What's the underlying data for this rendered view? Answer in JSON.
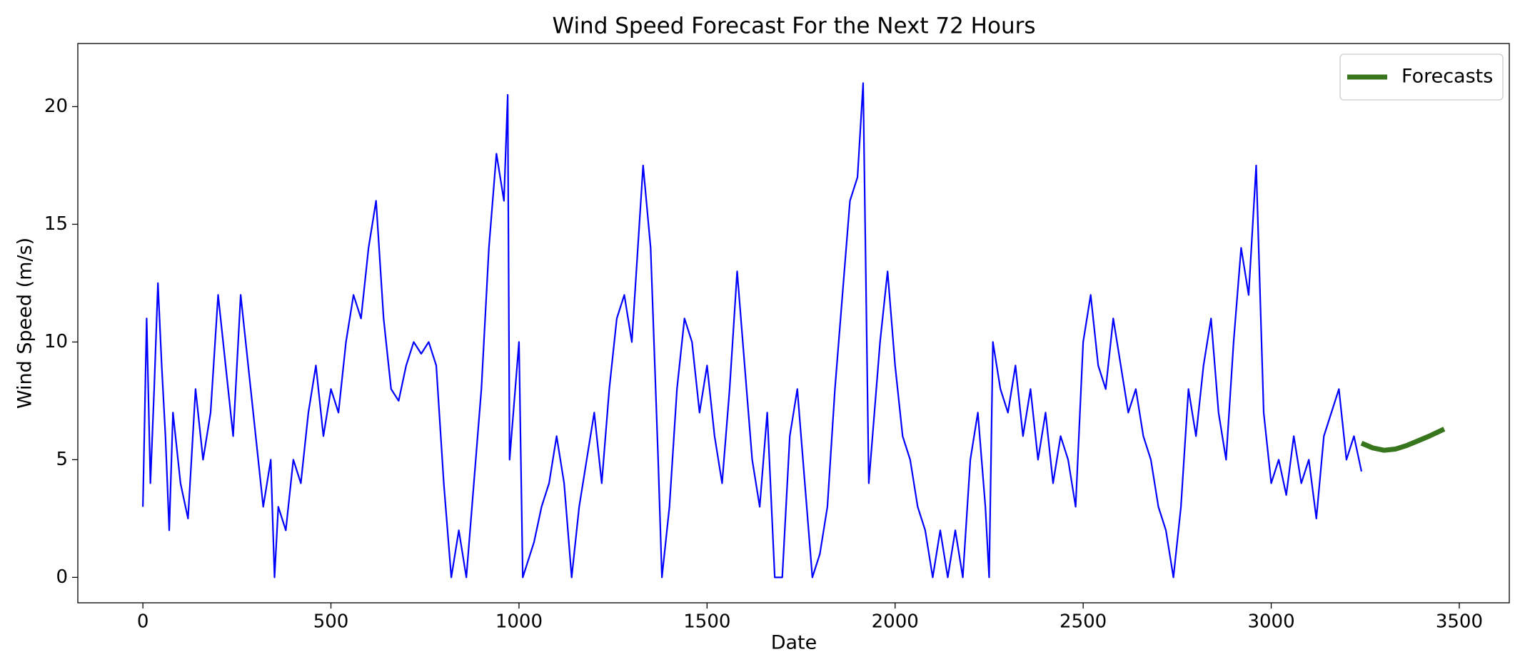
{
  "chart_data": {
    "type": "line",
    "title": "Wind Speed Forecast For the Next 72 Hours",
    "xlabel": "Date",
    "ylabel": "Wind Speed (m/s)",
    "xlim": [
      -173,
      3633
    ],
    "ylim": [
      -1.08,
      22.68
    ],
    "xticks": [
      0,
      500,
      1000,
      1500,
      2000,
      2500,
      3000,
      3500
    ],
    "yticks": [
      0,
      5,
      10,
      15,
      20
    ],
    "grid": false,
    "legend": "upper right",
    "series": [
      {
        "color": "#0000ff",
        "x": [
          0,
          10,
          20,
          30,
          40,
          50,
          60,
          70,
          80,
          100,
          120,
          140,
          160,
          180,
          200,
          220,
          240,
          260,
          280,
          300,
          320,
          340,
          350,
          360,
          380,
          400,
          420,
          440,
          460,
          480,
          500,
          520,
          540,
          560,
          580,
          600,
          620,
          640,
          660,
          680,
          700,
          720,
          740,
          760,
          780,
          800,
          810,
          820,
          840,
          860,
          880,
          900,
          920,
          940,
          960,
          970,
          975,
          990,
          1000,
          1010,
          1040,
          1060,
          1080,
          1100,
          1120,
          1140,
          1160,
          1180,
          1200,
          1220,
          1240,
          1260,
          1280,
          1300,
          1320,
          1330,
          1350,
          1370,
          1380,
          1400,
          1420,
          1440,
          1460,
          1480,
          1500,
          1520,
          1540,
          1560,
          1580,
          1600,
          1620,
          1640,
          1660,
          1680,
          1700,
          1720,
          1740,
          1760,
          1780,
          1800,
          1820,
          1840,
          1860,
          1880,
          1900,
          1915,
          1930,
          1960,
          1980,
          2000,
          2020,
          2040,
          2060,
          2080,
          2100,
          2120,
          2140,
          2160,
          2180,
          2200,
          2220,
          2240,
          2250,
          2260,
          2280,
          2300,
          2320,
          2340,
          2360,
          2380,
          2400,
          2420,
          2440,
          2460,
          2480,
          2500,
          2520,
          2540,
          2560,
          2580,
          2600,
          2620,
          2640,
          2660,
          2680,
          2700,
          2720,
          2740,
          2760,
          2780,
          2800,
          2820,
          2840,
          2860,
          2880,
          2900,
          2920,
          2940,
          2960,
          2980,
          3000,
          3020,
          3040,
          3060,
          3080,
          3100,
          3120,
          3140,
          3160,
          3180,
          3200,
          3220,
          3240
        ],
        "values": [
          3,
          11,
          4,
          8,
          12.5,
          9,
          6,
          2,
          7,
          4,
          2.5,
          8,
          5,
          7,
          12,
          9,
          6,
          12,
          9,
          6,
          3,
          5,
          0,
          3,
          2,
          5,
          4,
          7,
          9,
          6,
          8,
          7,
          10,
          12,
          11,
          14,
          16,
          11,
          8,
          7.5,
          9,
          10,
          9.5,
          10,
          9,
          4,
          2,
          0,
          2,
          0,
          4,
          8,
          14,
          18,
          16,
          20.5,
          5,
          8,
          10,
          0,
          1.5,
          3,
          4,
          6,
          4,
          0,
          3,
          5,
          7,
          4,
          8,
          11,
          12,
          10,
          15,
          17.5,
          14,
          5,
          0,
          3,
          8,
          11,
          10,
          7,
          9,
          6,
          4,
          8,
          13,
          9,
          5,
          3,
          7,
          0,
          0,
          6,
          8,
          4,
          0,
          1,
          3,
          8,
          12,
          16,
          17,
          21,
          4,
          10,
          13,
          9,
          6,
          5,
          3,
          2,
          0,
          2,
          0,
          2,
          0,
          5,
          7,
          3,
          0,
          10,
          8,
          7,
          9,
          6,
          8,
          5,
          7,
          4,
          6,
          5,
          3,
          10,
          12,
          9,
          8,
          11,
          9,
          7,
          8,
          6,
          5,
          3,
          2,
          0,
          3,
          8,
          6,
          9,
          11,
          7,
          5,
          10,
          14,
          12,
          17.5,
          7,
          4,
          5,
          3.5,
          6,
          4,
          5,
          2.5,
          6,
          7,
          8,
          5,
          6,
          4.5
        ]
      },
      {
        "name": "Forecasts",
        "color": "#38761d",
        "x": [
          3240,
          3270,
          3300,
          3330,
          3360,
          3390,
          3420,
          3460
        ],
        "values": [
          5.7,
          5.5,
          5.4,
          5.45,
          5.6,
          5.8,
          6.0,
          6.3
        ]
      }
    ]
  }
}
